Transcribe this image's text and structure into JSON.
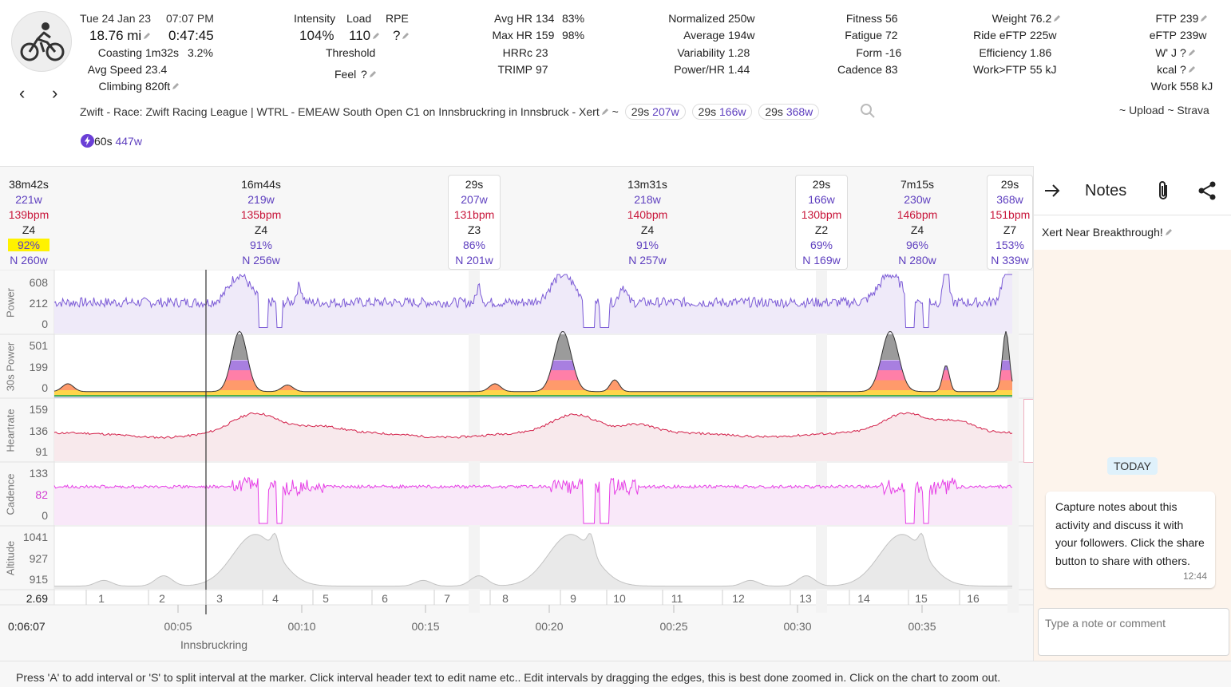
{
  "header": {
    "date": "Tue 24 Jan 23",
    "time": "07:07 PM",
    "distance": "18.76 mi",
    "duration": "0:47:45",
    "coasting_label": "Coasting",
    "coasting_value": "1m32s",
    "coasting_pct": "3.2%",
    "avg_speed_label": "Avg Speed",
    "avg_speed_value": "23.4",
    "climbing_label": "Climbing",
    "climbing_value": "820ft",
    "intensity_label": "Intensity",
    "intensity_value": "104%",
    "load_label": "Load",
    "load_value": "110",
    "rpe_label": "RPE",
    "rpe_value": "?",
    "threshold_label": "Threshold",
    "feel_label": "Feel",
    "feel_value": "?",
    "avg_hr_label": "Avg HR",
    "avg_hr_value": "134",
    "avg_hr_pct": "83%",
    "max_hr_label": "Max HR",
    "max_hr_value": "159",
    "max_hr_pct": "98%",
    "hrrc_label": "HRRc",
    "hrrc_value": "23",
    "trimp_label": "TRIMP",
    "trimp_value": "97",
    "normalized_label": "Normalized",
    "normalized_value": "250w",
    "average_label": "Average",
    "average_value": "194w",
    "variability_label": "Variability",
    "variability_value": "1.28",
    "powerhr_label": "Power/HR",
    "powerhr_value": "1.44",
    "fitness_label": "Fitness",
    "fitness_value": "56",
    "fatigue_label": "Fatigue",
    "fatigue_value": "72",
    "form_label": "Form",
    "form_value": "-16",
    "cadence_label": "Cadence",
    "cadence_value": "83",
    "weight_label": "Weight",
    "weight_value": "76.2",
    "ride_eftp_label": "Ride eFTP",
    "ride_eftp_value": "225w",
    "efficiency_label": "Efficiency",
    "efficiency_value": "1.86",
    "workftp_label": "Work>FTP",
    "workftp_value": "55 kJ",
    "ftp_label": "FTP",
    "ftp_value": "239",
    "eftp_label": "eFTP",
    "eftp_value": "239w",
    "wj_label": "W' J",
    "wj_value": "?",
    "kcal_label": "kcal",
    "kcal_value": "?",
    "work_label": "Work",
    "work_value": "558 kJ",
    "title": "Zwift - Race: Zwift Racing League | WTRL - EMEAW South Open C1 on Innsbruckring in Innsbruck - Xert",
    "tilde": "~",
    "chips": [
      {
        "dur": "29s",
        "pw": "207w"
      },
      {
        "dur": "29s",
        "pw": "166w"
      },
      {
        "dur": "29s",
        "pw": "368w"
      }
    ],
    "upload": "~ Upload ~ Strava",
    "peak_dur": "60s",
    "peak_pw": "447w"
  },
  "intervals": [
    {
      "dur": "38m42s",
      "pw": "221w",
      "hr": "139bpm",
      "zone": "Z4",
      "pct": "92%",
      "np": "N 260w"
    },
    {
      "dur": "16m44s",
      "pw": "219w",
      "hr": "135bpm",
      "zone": "Z4",
      "pct": "91%",
      "np": "N 256w"
    },
    {
      "dur": "29s",
      "pw": "207w",
      "hr": "131bpm",
      "zone": "Z3",
      "pct": "86%",
      "np": "N 201w"
    },
    {
      "dur": "13m31s",
      "pw": "218w",
      "hr": "140bpm",
      "zone": "Z4",
      "pct": "91%",
      "np": "N 257w"
    },
    {
      "dur": "29s",
      "pw": "166w",
      "hr": "130bpm",
      "zone": "Z2",
      "pct": "69%",
      "np": "N 169w"
    },
    {
      "dur": "7m15s",
      "pw": "230w",
      "hr": "146bpm",
      "zone": "Z4",
      "pct": "96%",
      "np": "N 280w"
    },
    {
      "dur": "29s",
      "pw": "368w",
      "hr": "151bpm",
      "zone": "Z7",
      "pct": "153%",
      "np": "N 339w"
    }
  ],
  "rows": {
    "power": {
      "label": "Power",
      "ticks": [
        "608",
        "212",
        "0"
      ]
    },
    "p30": {
      "label": "30s Power",
      "ticks": [
        "501",
        "199",
        "0"
      ]
    },
    "hr": {
      "label": "Heartrate",
      "ticks": [
        "159",
        "136",
        "91"
      ]
    },
    "cad": {
      "label": "Cadence",
      "ticks": [
        "133",
        "82",
        "0"
      ]
    },
    "alt": {
      "label": "Altitude",
      "ticks": [
        "1041",
        "927",
        "915"
      ]
    }
  },
  "laps": {
    "start": "2.69",
    "labels": [
      "1",
      "2",
      "3",
      "4",
      "5",
      "6",
      "7",
      "8",
      "9",
      "10",
      "11",
      "12",
      "13",
      "14",
      "15",
      "16"
    ]
  },
  "time_axis": {
    "cursor": "0:06:07",
    "ticks": [
      "00:05",
      "00:10",
      "00:15",
      "00:20",
      "00:25",
      "00:30",
      "00:35"
    ],
    "location": "Innsbruckring"
  },
  "notes": {
    "title": "Notes",
    "prompt": "Xert Near Breakthrough!",
    "today": "TODAY",
    "message": "Capture notes about this activity and discuss it with your followers. Click the share button to share with others.",
    "msg_time": "12:44",
    "input_placeholder": "Type a note or comment"
  },
  "footer": "Press 'A' to add interval or 'S' to split interval at the marker. Click interval header text to edit name etc.. Edit intervals by dragging the edges, this is best done zoomed in. Click on the chart to zoom out.",
  "colors": {
    "power": "#7b5ad6",
    "hr": "#d3214a",
    "cadence": "#e63ee6",
    "altitude": "#bbbbbb",
    "accent": "#5e3fbf"
  }
}
